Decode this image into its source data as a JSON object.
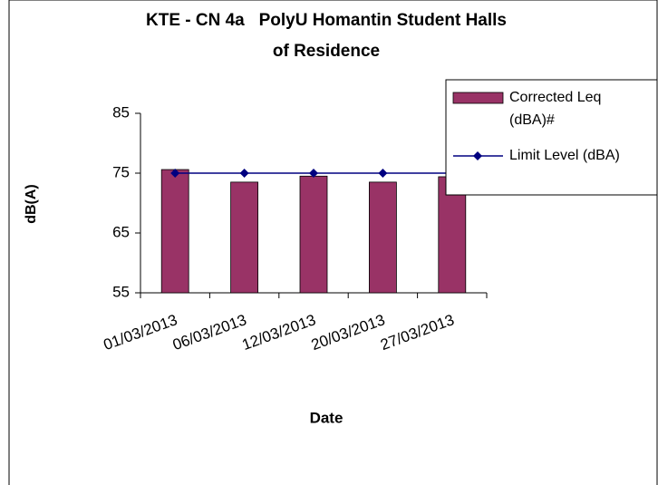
{
  "chart_data": {
    "type": "bar",
    "title": "KTE - CN 4a   PolyU Homantin Student Halls of Residence",
    "x_label": "Date",
    "y_label": "dB(A)",
    "categories": [
      "01/03/2013",
      "06/03/2013",
      "12/03/2013",
      "20/03/2013",
      "27/03/2013"
    ],
    "series": [
      {
        "name": "Corrected Leq (dBA)#",
        "type": "bar",
        "color": "#993366",
        "values": [
          75.6,
          73.5,
          74.5,
          73.5,
          74.4
        ]
      },
      {
        "name": "Limit Level (dBA)",
        "type": "line",
        "color": "#000080",
        "values": [
          75,
          75,
          75,
          75,
          75
        ]
      }
    ],
    "ylim": [
      55,
      85
    ],
    "yticks": [
      55,
      65,
      75,
      85
    ],
    "legend": "right"
  }
}
